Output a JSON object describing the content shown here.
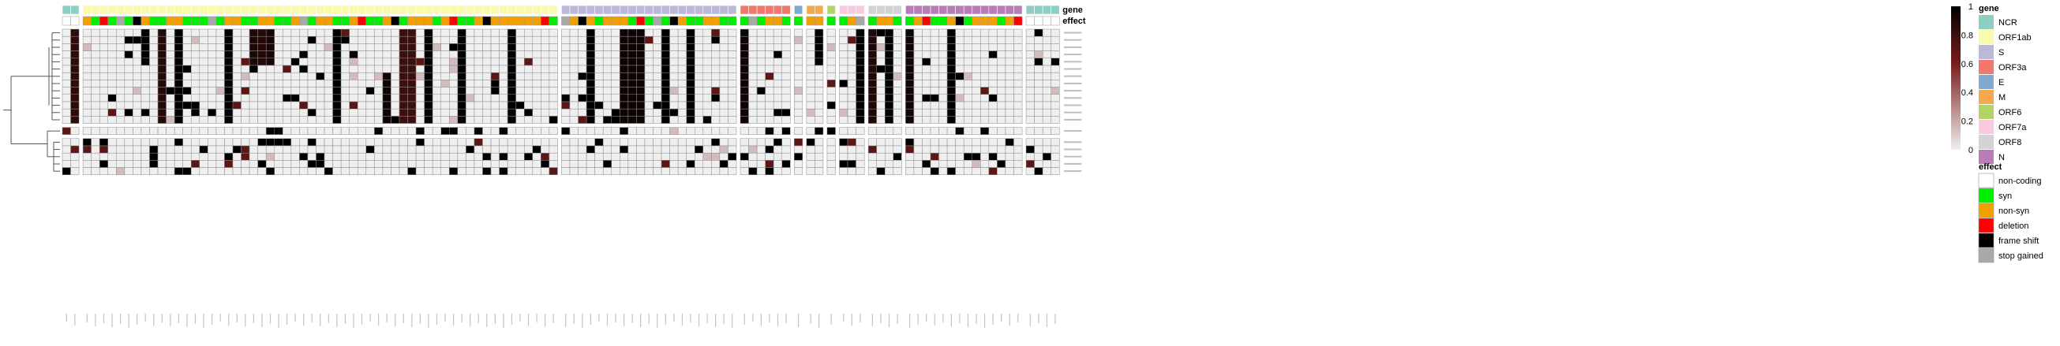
{
  "chart_data": {
    "type": "heatmap",
    "title": "",
    "xlabel": "",
    "ylabel": "",
    "annotation_titles": {
      "gene": "gene",
      "effect": "effect"
    },
    "colorbar": {
      "min": 0,
      "max": 1,
      "ticks": [
        "0",
        "0.2",
        "0.4",
        "0.6",
        "0.8",
        "1"
      ],
      "low_color": "#efefef",
      "high_color": "#000000",
      "mid_color": "#7a1d1d"
    },
    "gene_legend": {
      "title": "gene",
      "items": [
        {
          "label": "NCR",
          "color": "#8ecfc3"
        },
        {
          "label": "ORF1ab",
          "color": "#fbf9ae"
        },
        {
          "label": "S",
          "color": "#bbb8d9"
        },
        {
          "label": "ORF3a",
          "color": "#f0786d"
        },
        {
          "label": "E",
          "color": "#7fa9cf"
        },
        {
          "label": "M",
          "color": "#f4a94c"
        },
        {
          "label": "ORF6",
          "color": "#b3d465"
        },
        {
          "label": "ORF7a",
          "color": "#f8c9df"
        },
        {
          "label": "ORF8",
          "color": "#d3d3d3"
        },
        {
          "label": "N",
          "color": "#b87db7"
        }
      ]
    },
    "effect_legend": {
      "title": "effect",
      "items": [
        {
          "label": "non-coding",
          "color": "#ffffff"
        },
        {
          "label": "syn",
          "color": "#00ee00"
        },
        {
          "label": "non-syn",
          "color": "#f2a000"
        },
        {
          "label": "deletion",
          "color": "#ff0000"
        },
        {
          "label": "frame shift",
          "color": "#000000"
        },
        {
          "label": "stop gained",
          "color": "#a9a9a9"
        }
      ]
    },
    "row_groups": [
      13,
      1,
      5
    ],
    "n_rows": 19,
    "column_groups": [
      {
        "gene": "NCR",
        "count": 2
      },
      {
        "gene": "ORF1ab",
        "count": 57
      },
      {
        "gene": "S",
        "count": 21
      },
      {
        "gene": "ORF3a",
        "count": 6
      },
      {
        "gene": "E",
        "count": 1
      },
      {
        "gene": "M",
        "count": 2
      },
      {
        "gene": "ORF6",
        "count": 1
      },
      {
        "gene": "ORF7a",
        "count": 3
      },
      {
        "gene": "ORF8",
        "count": 4
      },
      {
        "gene": "N",
        "count": 14
      },
      {
        "gene": "NCR",
        "count": 4
      }
    ],
    "effect_sequence": [
      "non-coding",
      "non-syn",
      "syn",
      "non-syn",
      "syn",
      "syn",
      "non-syn",
      "non-syn",
      "syn",
      "non-syn",
      "frame shift",
      "stop gained",
      "syn",
      "deletion",
      "non-syn",
      "syn"
    ],
    "solid_columns": [
      {
        "col": 1,
        "rows": "0-12",
        "value": 0.85
      },
      {
        "col": 9,
        "rows": "0-4",
        "value": 1.0
      },
      {
        "col": 11,
        "rows": "0-12",
        "value": 0.88
      },
      {
        "col": 13,
        "rows": "0-12",
        "value": 1.0
      },
      {
        "col": 19,
        "rows": "0-12",
        "value": 1.0
      },
      {
        "col": 22,
        "rows": "0-4",
        "value": 0.9
      },
      {
        "col": 23,
        "rows": "0-4",
        "value": 0.88
      },
      {
        "col": 24,
        "rows": "0-4",
        "value": 0.92
      },
      {
        "col": 32,
        "rows": "0-12",
        "value": 1.0
      },
      {
        "col": 38,
        "rows": "6-12",
        "value": 0.95
      },
      {
        "col": 40,
        "rows": "0-12",
        "value": 0.8
      },
      {
        "col": 41,
        "rows": "0-12",
        "value": 0.8
      },
      {
        "col": 43,
        "rows": "0-12",
        "value": 1.0
      },
      {
        "col": 47,
        "rows": "0-12",
        "value": 1.0
      },
      {
        "col": 53,
        "rows": "0-12",
        "value": 1.0
      },
      {
        "col": 62,
        "rows": "0-12",
        "value": 1.0
      },
      {
        "col": 66,
        "rows": "0-12",
        "value": 0.95
      },
      {
        "col": 67,
        "rows": "0-12",
        "value": 0.95
      },
      {
        "col": 68,
        "rows": "0-12",
        "value": 0.95
      },
      {
        "col": 71,
        "rows": "0-12",
        "value": 1.0
      },
      {
        "col": 74,
        "rows": "0-12",
        "value": 1.0
      },
      {
        "col": 80,
        "rows": "0-12",
        "value": 0.95
      },
      {
        "col": 88,
        "rows": "0-4",
        "value": 1.0
      },
      {
        "col": 92,
        "rows": "0-12",
        "value": 1.0
      },
      {
        "col": 93,
        "rows": "0-12",
        "value": 0.9
      },
      {
        "col": 95,
        "rows": "0-12",
        "value": 1.0
      },
      {
        "col": 97,
        "rows": "0-12",
        "value": 0.95
      },
      {
        "col": 102,
        "rows": "0-12",
        "value": 1.0
      }
    ]
  }
}
